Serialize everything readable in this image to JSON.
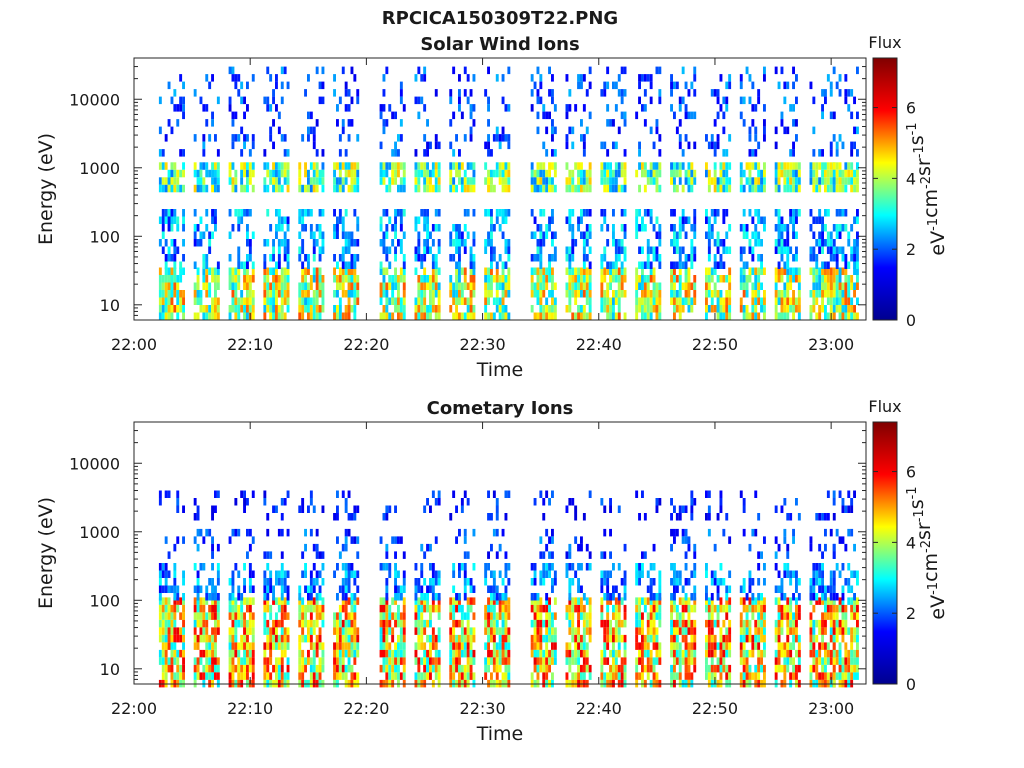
{
  "figure_title": "RPCICA150309T22.PNG",
  "colorbar": {
    "label": "Flux",
    "unit_parts": [
      "eV",
      "-1",
      "cm",
      "-2",
      "sr",
      "-1",
      "s",
      "-1"
    ],
    "range": [
      0,
      7.4
    ],
    "ticks": [
      "0",
      "2",
      "4",
      "6"
    ],
    "colormap": [
      "#00008f",
      "#0000ff",
      "#00ffff",
      "#ffff00",
      "#ff0000",
      "#800000"
    ]
  },
  "chart_data": [
    {
      "type": "heatmap",
      "title": "Solar Wind Ions",
      "xlabel": "Time",
      "ylabel": "Energy (eV)",
      "xlim": [
        "22:00",
        "23:03"
      ],
      "ylim": [
        6,
        40000
      ],
      "yscale": "log",
      "xticks": [
        "22:00",
        "22:10",
        "22:20",
        "22:30",
        "22:40",
        "22:50",
        "23:00"
      ],
      "yticks": [
        "10",
        "100",
        "1000",
        "10000"
      ],
      "scan_start_times": [
        "22:03",
        "22:06",
        "22:09",
        "22:12",
        "22:15",
        "22:18",
        "22:22",
        "22:25",
        "22:28",
        "22:31",
        "22:35",
        "22:38",
        "22:41",
        "22:44",
        "22:47",
        "22:50",
        "22:53",
        "22:56",
        "22:59",
        "23:01"
      ],
      "bands": [
        {
          "energy_min": 7,
          "energy_max": 35,
          "flux_peak": 5.5
        },
        {
          "energy_min": 40,
          "energy_max": 250,
          "flux_peak": 3.2
        },
        {
          "energy_min": 500,
          "energy_max": 1200,
          "flux_peak": 4.8
        },
        {
          "energy_min": 1500,
          "energy_max": 30000,
          "flux_peak": 2.6
        }
      ]
    },
    {
      "type": "heatmap",
      "title": "Cometary Ions",
      "xlabel": "Time",
      "ylabel": "Energy (eV)",
      "xlim": [
        "22:00",
        "23:03"
      ],
      "ylim": [
        6,
        40000
      ],
      "yscale": "log",
      "xticks": [
        "22:00",
        "22:10",
        "22:20",
        "22:30",
        "22:40",
        "22:50",
        "23:00"
      ],
      "yticks": [
        "10",
        "100",
        "1000",
        "10000"
      ],
      "scan_start_times": [
        "22:03",
        "22:06",
        "22:09",
        "22:12",
        "22:15",
        "22:18",
        "22:22",
        "22:25",
        "22:28",
        "22:31",
        "22:35",
        "22:38",
        "22:41",
        "22:44",
        "22:47",
        "22:50",
        "22:53",
        "22:56",
        "22:59",
        "23:01"
      ],
      "bands": [
        {
          "energy_min": 6,
          "energy_max": 110,
          "flux_peak": 6.2
        },
        {
          "energy_min": 120,
          "energy_max": 350,
          "flux_peak": 3.0
        },
        {
          "energy_min": 500,
          "energy_max": 1100,
          "flux_peak": 2.5
        },
        {
          "energy_min": 1500,
          "energy_max": 4000,
          "flux_peak": 2.2
        }
      ]
    }
  ]
}
